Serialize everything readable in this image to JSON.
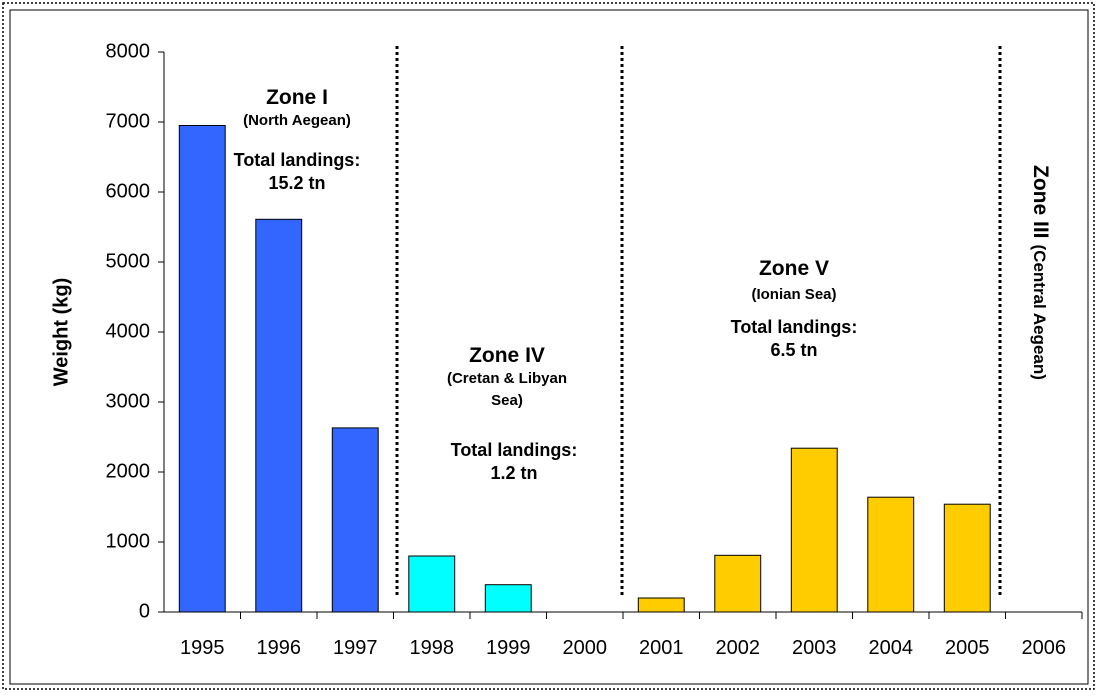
{
  "chart_data": {
    "type": "bar",
    "ylabel": "Weight (kg)",
    "categories": [
      "1995",
      "1996",
      "1997",
      "1998",
      "1999",
      "2000",
      "2001",
      "2002",
      "2003",
      "2004",
      "2005",
      "2006"
    ],
    "values": [
      6950,
      5610,
      2630,
      800,
      390,
      0,
      200,
      810,
      2340,
      1640,
      1540,
      0
    ],
    "colors": [
      "#3366ff",
      "#3366ff",
      "#3366ff",
      "#00ffff",
      "#00ffff",
      "#00ffff",
      "#ffcc00",
      "#ffcc00",
      "#ffcc00",
      "#ffcc00",
      "#ffcc00",
      "#ffcc00"
    ],
    "ylim": [
      0,
      8000
    ],
    "yticks": [
      0,
      1000,
      2000,
      3000,
      4000,
      5000,
      6000,
      7000,
      8000
    ],
    "grid": false,
    "annotations": [
      {
        "zone": "Zone I",
        "area": [
          "(North Aegean)"
        ],
        "total": [
          "Total landings:",
          "15.2 tn"
        ]
      },
      {
        "zone": "Zone IV",
        "area": [
          "(Cretan & Libyan",
          "Sea)"
        ],
        "total": [
          "Total landings:",
          "1.2 tn"
        ]
      },
      {
        "zone": "Zone V",
        "area": [
          "(Ionian Sea)"
        ],
        "total": [
          "Total landings:",
          "6.5 tn"
        ]
      },
      {
        "zone": "Zone III",
        "area": [
          "(Central Aegean)"
        ]
      }
    ]
  }
}
